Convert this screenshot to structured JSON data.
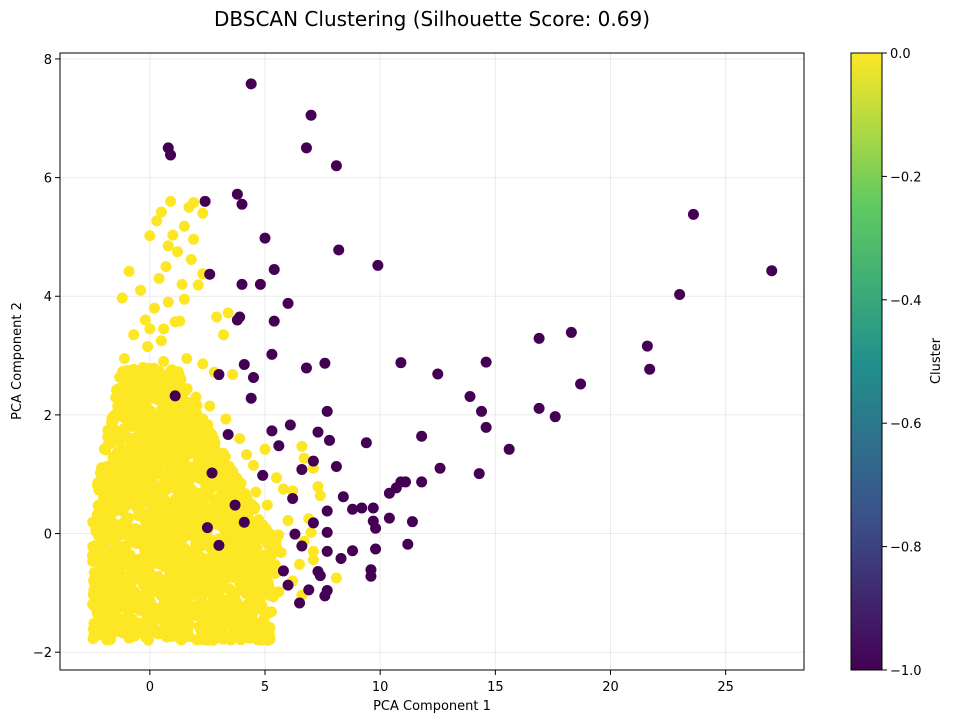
{
  "chart_data": {
    "type": "scatter",
    "title": "DBSCAN Clustering (Silhouette Score: 0.69)",
    "xlabel": "PCA Component 1",
    "ylabel": "PCA Component 2",
    "xlim": [
      -3.9,
      28.4
    ],
    "ylim": [
      -2.3,
      8.1
    ],
    "xticks": [
      0,
      5,
      10,
      15,
      20,
      25
    ],
    "yticks": [
      -2,
      0,
      2,
      4,
      6,
      8
    ],
    "grid": true,
    "colorbar": {
      "label": "Cluster",
      "range": [
        -1.0,
        0.0
      ],
      "ticks": [
        "0.0",
        "−0.2",
        "−0.4",
        "−0.6",
        "−0.8",
        "−1.0"
      ],
      "tick_values": [
        0.0,
        -0.2,
        -0.4,
        -0.6,
        -0.8,
        -1.0
      ],
      "colors": [
        "#440154",
        "#3b528b",
        "#21918c",
        "#5ec962",
        "#fde725"
      ]
    },
    "series": [
      {
        "cluster": -1,
        "color": "#440154",
        "points": [
          [
            4.4,
            7.58
          ],
          [
            7.0,
            7.05
          ],
          [
            0.8,
            6.5
          ],
          [
            0.9,
            6.38
          ],
          [
            6.8,
            6.5
          ],
          [
            8.1,
            6.2
          ],
          [
            3.8,
            5.72
          ],
          [
            4.0,
            5.55
          ],
          [
            2.4,
            5.6
          ],
          [
            23.6,
            5.38
          ],
          [
            5.0,
            4.98
          ],
          [
            8.2,
            4.78
          ],
          [
            9.9,
            4.52
          ],
          [
            5.4,
            4.45
          ],
          [
            2.6,
            4.37
          ],
          [
            27.0,
            4.43
          ],
          [
            4.0,
            4.2
          ],
          [
            4.8,
            4.2
          ],
          [
            23.0,
            4.03
          ],
          [
            6.0,
            3.88
          ],
          [
            3.9,
            3.65
          ],
          [
            5.4,
            3.58
          ],
          [
            3.8,
            3.6
          ],
          [
            18.3,
            3.39
          ],
          [
            16.9,
            3.29
          ],
          [
            21.6,
            3.16
          ],
          [
            5.3,
            3.02
          ],
          [
            4.1,
            2.85
          ],
          [
            7.6,
            2.87
          ],
          [
            10.9,
            2.88
          ],
          [
            14.6,
            2.89
          ],
          [
            6.8,
            2.79
          ],
          [
            21.7,
            2.77
          ],
          [
            3.0,
            2.68
          ],
          [
            12.5,
            2.69
          ],
          [
            4.5,
            2.63
          ],
          [
            18.7,
            2.52
          ],
          [
            4.4,
            2.28
          ],
          [
            13.9,
            2.31
          ],
          [
            7.7,
            2.06
          ],
          [
            14.4,
            2.06
          ],
          [
            16.9,
            2.11
          ],
          [
            17.6,
            1.97
          ],
          [
            6.1,
            1.83
          ],
          [
            14.6,
            1.79
          ],
          [
            5.3,
            1.73
          ],
          [
            7.3,
            1.71
          ],
          [
            3.4,
            1.67
          ],
          [
            11.8,
            1.64
          ],
          [
            7.8,
            1.57
          ],
          [
            9.4,
            1.53
          ],
          [
            5.6,
            1.48
          ],
          [
            15.6,
            1.42
          ],
          [
            7.1,
            1.22
          ],
          [
            6.6,
            1.08
          ],
          [
            8.1,
            1.13
          ],
          [
            12.6,
            1.1
          ],
          [
            14.3,
            1.01
          ],
          [
            10.9,
            0.87
          ],
          [
            11.1,
            0.87
          ],
          [
            11.8,
            0.87
          ],
          [
            10.7,
            0.77
          ],
          [
            10.4,
            0.68
          ],
          [
            8.4,
            0.62
          ],
          [
            6.2,
            0.59
          ],
          [
            8.8,
            0.41
          ],
          [
            9.2,
            0.43
          ],
          [
            9.7,
            0.43
          ],
          [
            7.7,
            0.38
          ],
          [
            9.7,
            0.21
          ],
          [
            10.4,
            0.26
          ],
          [
            11.4,
            0.2
          ],
          [
            7.1,
            0.18
          ],
          [
            9.8,
            0.09
          ],
          [
            7.7,
            0.02
          ],
          [
            6.3,
            -0.01
          ],
          [
            6.6,
            -0.21
          ],
          [
            7.7,
            -0.3
          ],
          [
            8.8,
            -0.29
          ],
          [
            9.8,
            -0.26
          ],
          [
            11.2,
            -0.18
          ],
          [
            8.3,
            -0.42
          ],
          [
            7.3,
            -0.64
          ],
          [
            9.6,
            -0.61
          ],
          [
            9.6,
            -0.72
          ],
          [
            6.0,
            -0.87
          ],
          [
            6.9,
            -0.95
          ],
          [
            7.7,
            -0.96
          ],
          [
            7.6,
            -1.05
          ],
          [
            6.5,
            -1.17
          ],
          [
            7.4,
            -0.71
          ],
          [
            5.8,
            -0.63
          ],
          [
            4.9,
            0.98
          ],
          [
            2.7,
            1.02
          ],
          [
            3.7,
            0.48
          ],
          [
            4.1,
            0.19
          ],
          [
            2.5,
            0.1
          ],
          [
            3.0,
            -0.2
          ],
          [
            1.1,
            2.32
          ]
        ]
      },
      {
        "cluster": 0,
        "color": "#fde725",
        "points": [
          [
            0.9,
            5.6
          ],
          [
            1.7,
            5.5
          ],
          [
            1.9,
            5.58
          ],
          [
            2.3,
            5.4
          ],
          [
            0.5,
            5.42
          ],
          [
            1.0,
            5.03
          ],
          [
            1.5,
            5.18
          ],
          [
            0.3,
            5.27
          ],
          [
            1.9,
            4.96
          ],
          [
            0.0,
            5.02
          ],
          [
            1.2,
            4.75
          ],
          [
            1.8,
            4.62
          ],
          [
            0.8,
            4.85
          ],
          [
            2.3,
            4.38
          ],
          [
            0.7,
            4.5
          ],
          [
            -0.9,
            4.42
          ],
          [
            0.4,
            4.3
          ],
          [
            1.4,
            4.2
          ],
          [
            2.1,
            4.19
          ],
          [
            -1.2,
            3.97
          ],
          [
            -0.4,
            4.1
          ],
          [
            0.8,
            3.9
          ],
          [
            1.5,
            3.95
          ],
          [
            0.2,
            3.8
          ],
          [
            -0.2,
            3.6
          ],
          [
            1.1,
            3.57
          ],
          [
            2.9,
            3.65
          ],
          [
            3.4,
            3.72
          ],
          [
            0.6,
            3.45
          ],
          [
            1.3,
            3.58
          ],
          [
            3.2,
            3.35
          ],
          [
            -0.7,
            3.35
          ],
          [
            -0.1,
            3.15
          ],
          [
            0.5,
            3.25
          ],
          [
            1.6,
            2.95
          ],
          [
            2.3,
            2.86
          ],
          [
            2.8,
            2.72
          ],
          [
            3.6,
            2.68
          ],
          [
            -1.1,
            2.95
          ],
          [
            0.2,
            2.75
          ],
          [
            1.3,
            2.58
          ],
          [
            2.0,
            2.3
          ],
          [
            0.7,
            2.42
          ],
          [
            2.6,
            2.15
          ],
          [
            3.3,
            1.93
          ],
          [
            -0.2,
            2.1
          ],
          [
            1.4,
            1.9
          ],
          [
            2.5,
            1.75
          ],
          [
            3.9,
            1.6
          ],
          [
            1.0,
            1.7
          ],
          [
            2.0,
            1.52
          ],
          [
            4.2,
            1.33
          ],
          [
            5.0,
            1.42
          ],
          [
            6.6,
            1.47
          ],
          [
            4.5,
            1.15
          ],
          [
            6.7,
            1.27
          ],
          [
            3.6,
            1.05
          ],
          [
            5.5,
            0.94
          ],
          [
            7.1,
            1.1
          ],
          [
            7.3,
            0.79
          ],
          [
            5.8,
            0.75
          ],
          [
            4.6,
            0.7
          ],
          [
            6.2,
            0.72
          ],
          [
            7.4,
            0.64
          ],
          [
            5.1,
            0.48
          ],
          [
            6.9,
            0.25
          ],
          [
            6.0,
            0.22
          ],
          [
            7.0,
            0.02
          ],
          [
            6.7,
            -0.13
          ],
          [
            7.1,
            -0.44
          ],
          [
            5.7,
            -0.32
          ],
          [
            6.5,
            -0.52
          ],
          [
            6.2,
            -0.8
          ],
          [
            6.6,
            -1.04
          ],
          [
            7.1,
            -0.3
          ],
          [
            8.1,
            -0.75
          ],
          [
            5.6,
            -0.98
          ],
          [
            0.0,
            3.45
          ],
          [
            -0.5,
            2.6
          ],
          [
            0.6,
            2.9
          ],
          [
            1.8,
            1.35
          ],
          [
            2.9,
            1.15
          ],
          [
            3.8,
            0.85
          ],
          [
            1.6,
            0.95
          ]
        ]
      }
    ],
    "dense_cloud": {
      "cluster": 0,
      "color": "#fde725",
      "x_range": [
        -2.5,
        5.5
      ],
      "y_range": [
        -1.8,
        2.4
      ]
    }
  }
}
